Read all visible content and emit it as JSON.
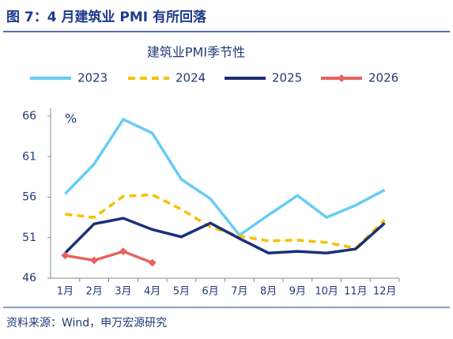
{
  "header": {
    "title": "图 7：4 月建筑业 PMI 有所回落"
  },
  "chart_data": {
    "type": "line",
    "title": "建筑业PMI季节性",
    "y_label": "%",
    "categories": [
      "1月",
      "2月",
      "3月",
      "4月",
      "5月",
      "6月",
      "7月",
      "8月",
      "9月",
      "10月",
      "11月",
      "12月"
    ],
    "series": [
      {
        "name": "2023",
        "color": "#66ccf5",
        "values": [
          56.4,
          60.1,
          65.6,
          63.9,
          58.2,
          55.8,
          51.3,
          53.8,
          56.2,
          53.5,
          55.0,
          56.9
        ]
      },
      {
        "name": "2024",
        "color": "#f5c200",
        "dash": true,
        "values": [
          53.9,
          53.5,
          56.1,
          56.3,
          54.5,
          52.3,
          51.2,
          50.6,
          50.7,
          50.4,
          49.7,
          53.2
        ]
      },
      {
        "name": "2025",
        "color": "#1b2f7a",
        "values": [
          49.1,
          52.7,
          53.4,
          52.0,
          51.1,
          52.8,
          50.9,
          49.1,
          49.3,
          49.1,
          49.6,
          52.8
        ]
      },
      {
        "name": "2026",
        "color": "#e8625e",
        "marker": "diamond",
        "values": [
          48.8,
          48.2,
          49.3,
          47.9,
          null,
          null,
          null,
          null,
          null,
          null,
          null,
          null
        ]
      }
    ],
    "ylim": [
      46,
      66
    ],
    "yticks": [
      46,
      51,
      56,
      61,
      66
    ]
  },
  "footer": {
    "source": "资料来源：Wind，申万宏源研究"
  }
}
